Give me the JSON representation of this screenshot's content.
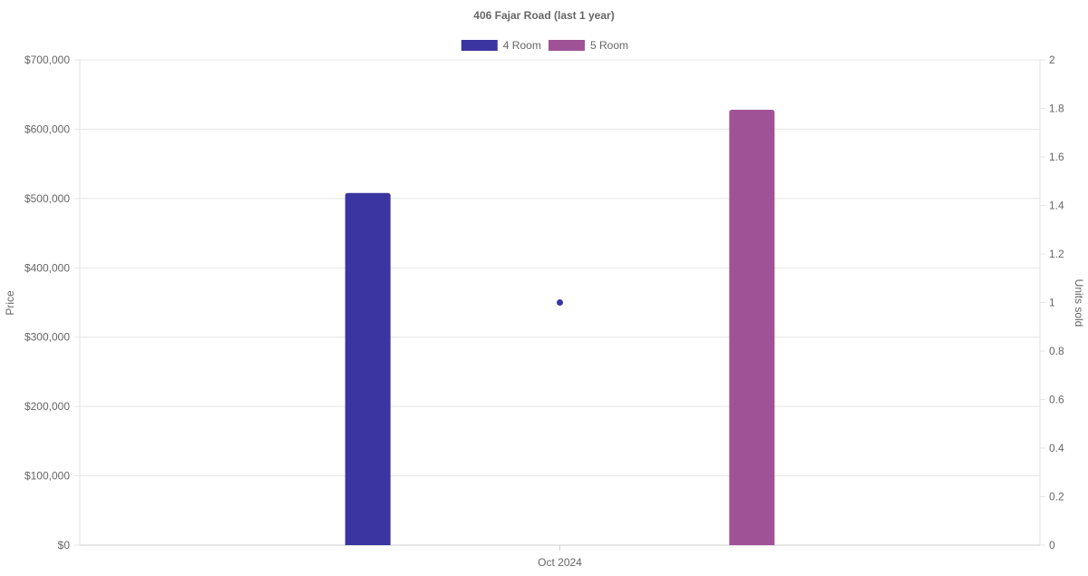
{
  "chart_data": {
    "type": "bar",
    "title": "406 Fajar Road (last 1 year)",
    "categories": [
      "Oct 2024"
    ],
    "ylabel": "Price",
    "y2label": "Units sold",
    "ylim": [
      0,
      700000
    ],
    "y2lim": [
      0,
      2
    ],
    "yticks": [
      "$0",
      "$100,000",
      "$200,000",
      "$300,000",
      "$400,000",
      "$500,000",
      "$600,000",
      "$700,000"
    ],
    "y2ticks": [
      "0",
      "0.2",
      "0.4",
      "0.6",
      "0.8",
      "1",
      "1.2",
      "1.4",
      "1.6",
      "1.8",
      "2"
    ],
    "legend_position": "top",
    "grid": true,
    "series": [
      {
        "name": "4 Room",
        "type": "bar",
        "axis": "left",
        "color": "#3a35a0",
        "values": [
          508000
        ]
      },
      {
        "name": "5 Room",
        "type": "bar",
        "axis": "left",
        "color": "#a05296",
        "values": [
          628000
        ]
      }
    ],
    "points": [
      {
        "axis": "right",
        "color": "#3a35a0",
        "values": [
          1
        ]
      }
    ]
  }
}
